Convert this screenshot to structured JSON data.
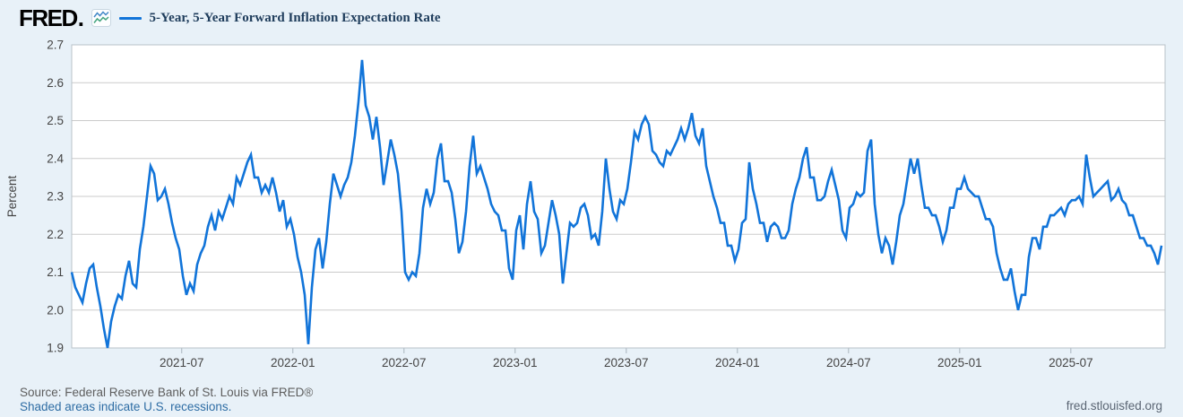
{
  "header": {
    "logo_text": "FRED",
    "logo_dot": ".",
    "legend_marker_color": "#1174d9",
    "series_title": "5-Year, 5-Year Forward Inflation Expectation Rate"
  },
  "chart_data": {
    "type": "line",
    "title": "5-Year, 5-Year Forward Inflation Expectation Rate",
    "xlabel": "",
    "ylabel": "Percent",
    "line_color": "#1174d9",
    "grid": true,
    "legend_position": "top-left header",
    "ylim": [
      1.9,
      2.7
    ],
    "y_ticks": [
      2.7,
      2.6,
      2.5,
      2.4,
      2.3,
      2.2,
      2.1,
      2.0,
      1.9
    ],
    "xlim_years": [
      2021.005,
      2025.924
    ],
    "x_ticks": [
      {
        "label": "2021-07",
        "year": 2021.5
      },
      {
        "label": "2022-01",
        "year": 2022.0
      },
      {
        "label": "2022-07",
        "year": 2022.5
      },
      {
        "label": "2023-01",
        "year": 2023.0
      },
      {
        "label": "2023-07",
        "year": 2023.5
      },
      {
        "label": "2024-01",
        "year": 2024.0
      },
      {
        "label": "2024-07",
        "year": 2024.5
      },
      {
        "label": "2025-01",
        "year": 2025.0
      },
      {
        "label": "2025-07",
        "year": 2025.5
      }
    ],
    "series_x_start_year": 2021.005,
    "series_x_end_year": 2025.908,
    "values": [
      2.1,
      2.06,
      2.04,
      2.02,
      2.07,
      2.11,
      2.12,
      2.06,
      2.01,
      1.95,
      1.9,
      1.97,
      2.01,
      2.04,
      2.03,
      2.09,
      2.13,
      2.07,
      2.06,
      2.16,
      2.22,
      2.3,
      2.38,
      2.36,
      2.29,
      2.3,
      2.32,
      2.28,
      2.23,
      2.19,
      2.16,
      2.09,
      2.04,
      2.07,
      2.05,
      2.12,
      2.15,
      2.17,
      2.22,
      2.25,
      2.21,
      2.26,
      2.24,
      2.27,
      2.3,
      2.28,
      2.35,
      2.33,
      2.36,
      2.39,
      2.41,
      2.35,
      2.35,
      2.31,
      2.33,
      2.31,
      2.35,
      2.31,
      2.26,
      2.29,
      2.22,
      2.24,
      2.2,
      2.14,
      2.1,
      2.04,
      1.91,
      2.06,
      2.16,
      2.19,
      2.11,
      2.18,
      2.28,
      2.36,
      2.33,
      2.3,
      2.33,
      2.35,
      2.39,
      2.46,
      2.55,
      2.66,
      2.54,
      2.51,
      2.45,
      2.51,
      2.43,
      2.33,
      2.39,
      2.45,
      2.41,
      2.36,
      2.26,
      2.1,
      2.08,
      2.1,
      2.09,
      2.15,
      2.27,
      2.32,
      2.28,
      2.31,
      2.4,
      2.44,
      2.34,
      2.34,
      2.31,
      2.24,
      2.15,
      2.18,
      2.26,
      2.38,
      2.46,
      2.36,
      2.38,
      2.35,
      2.32,
      2.28,
      2.26,
      2.25,
      2.21,
      2.21,
      2.11,
      2.08,
      2.21,
      2.25,
      2.16,
      2.28,
      2.34,
      2.26,
      2.24,
      2.15,
      2.17,
      2.23,
      2.29,
      2.25,
      2.2,
      2.07,
      2.15,
      2.23,
      2.22,
      2.23,
      2.27,
      2.28,
      2.25,
      2.19,
      2.2,
      2.17,
      2.26,
      2.4,
      2.32,
      2.26,
      2.24,
      2.29,
      2.28,
      2.32,
      2.39,
      2.47,
      2.45,
      2.49,
      2.51,
      2.49,
      2.42,
      2.41,
      2.39,
      2.38,
      2.42,
      2.41,
      2.43,
      2.45,
      2.48,
      2.45,
      2.48,
      2.52,
      2.46,
      2.44,
      2.48,
      2.38,
      2.34,
      2.3,
      2.27,
      2.23,
      2.23,
      2.17,
      2.17,
      2.13,
      2.16,
      2.23,
      2.24,
      2.39,
      2.32,
      2.28,
      2.23,
      2.23,
      2.18,
      2.22,
      2.23,
      2.22,
      2.19,
      2.19,
      2.21,
      2.28,
      2.32,
      2.35,
      2.4,
      2.43,
      2.35,
      2.35,
      2.29,
      2.29,
      2.3,
      2.34,
      2.37,
      2.33,
      2.29,
      2.21,
      2.19,
      2.27,
      2.28,
      2.31,
      2.3,
      2.31,
      2.42,
      2.45,
      2.28,
      2.2,
      2.15,
      2.19,
      2.17,
      2.12,
      2.18,
      2.25,
      2.28,
      2.34,
      2.4,
      2.36,
      2.4,
      2.33,
      2.27,
      2.27,
      2.25,
      2.25,
      2.22,
      2.18,
      2.21,
      2.27,
      2.27,
      2.32,
      2.32,
      2.35,
      2.32,
      2.31,
      2.3,
      2.3,
      2.27,
      2.24,
      2.24,
      2.22,
      2.15,
      2.11,
      2.08,
      2.08,
      2.11,
      2.05,
      2.0,
      2.04,
      2.04,
      2.14,
      2.19,
      2.19,
      2.16,
      2.22,
      2.22,
      2.25,
      2.25,
      2.26,
      2.27,
      2.25,
      2.28,
      2.29,
      2.29,
      2.3,
      2.28,
      2.41,
      2.35,
      2.3,
      2.31,
      2.32,
      2.33,
      2.34,
      2.29,
      2.3,
      2.32,
      2.29,
      2.28,
      2.25,
      2.25,
      2.22,
      2.19,
      2.19,
      2.17,
      2.17,
      2.15,
      2.12,
      2.17
    ]
  },
  "footer": {
    "source_text": "Source: Federal Reserve Bank of St. Louis via FRED®",
    "recession_note": "Shaded areas indicate U.S. recessions.",
    "site_link": "fred.stlouisfed.org"
  },
  "colors": {
    "page_background": "#e8f1f8",
    "plot_background": "#ffffff",
    "gridline": "#cbcbcb",
    "plot_border": "#b9c2c9",
    "tick": "#a9b4bd",
    "axis_text": "#444444",
    "title_text": "#1f3d5c",
    "source_text": "#5e5e5e",
    "link_text": "#2e6da4"
  }
}
